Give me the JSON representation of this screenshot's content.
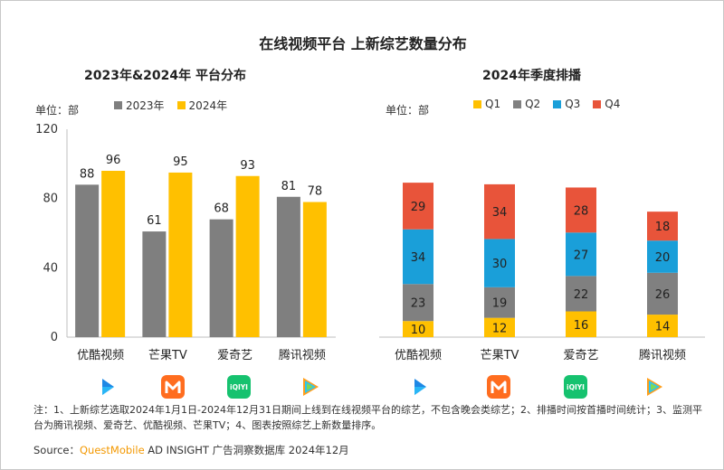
{
  "title": "在线视频平台 上新综艺数量分布",
  "left": {
    "subtitle": "2023年&2024年 平台分布",
    "unit": "单位：部",
    "legend": [
      "2023年",
      "2024年"
    ]
  },
  "right": {
    "subtitle": "2024年季度排播",
    "unit": "单位：部",
    "legend": [
      "Q1",
      "Q2",
      "Q3",
      "Q4"
    ]
  },
  "colors": {
    "gray": "#7f7f7f",
    "yellow": "#ffc000",
    "blue": "#1a9fd9",
    "red": "#e8543a",
    "q2gray": "#808080"
  },
  "note": "注：1、上新综艺选取2024年1月1日-2024年12月31日期间上线到在线视频平台的综艺，不包含晚会类综艺；2、排播时间按首播时间统计；3、监测平台为腾讯视频、爱奇艺、优酷视频、芒果TV；4、图表按照综艺上新数量排序。",
  "source": {
    "prefix": "Source：",
    "brand": "QuestMobile",
    "suffix": " AD INSIGHT 广告洞察数据库 2024年12月"
  },
  "logos": [
    "youku-logo",
    "mango-logo",
    "iqiyi-logo",
    "tencent-logo"
  ],
  "iqiyi_text": "iQIYI",
  "chart_data": [
    {
      "type": "bar",
      "title": "2023年&2024年 平台分布",
      "categories": [
        "优酷视频",
        "芒果TV",
        "爱奇艺",
        "腾讯视频"
      ],
      "series": [
        {
          "name": "2023年",
          "values": [
            88,
            61,
            68,
            81
          ]
        },
        {
          "name": "2024年",
          "values": [
            96,
            95,
            93,
            78
          ]
        }
      ],
      "ylim": [
        0,
        120
      ],
      "yticks": [
        0,
        40,
        80,
        120
      ],
      "ylabel": "单位：部",
      "legend": "top"
    },
    {
      "type": "bar",
      "stacked": true,
      "title": "2024年季度排播",
      "categories": [
        "优酷视频",
        "芒果TV",
        "爱奇艺",
        "腾讯视频"
      ],
      "series": [
        {
          "name": "Q1",
          "values": [
            10,
            12,
            16,
            14
          ]
        },
        {
          "name": "Q2",
          "values": [
            23,
            19,
            22,
            26
          ]
        },
        {
          "name": "Q3",
          "values": [
            34,
            30,
            27,
            20
          ]
        },
        {
          "name": "Q4",
          "values": [
            29,
            34,
            28,
            18
          ]
        }
      ],
      "ylabel": "单位：部",
      "legend": "top"
    }
  ]
}
